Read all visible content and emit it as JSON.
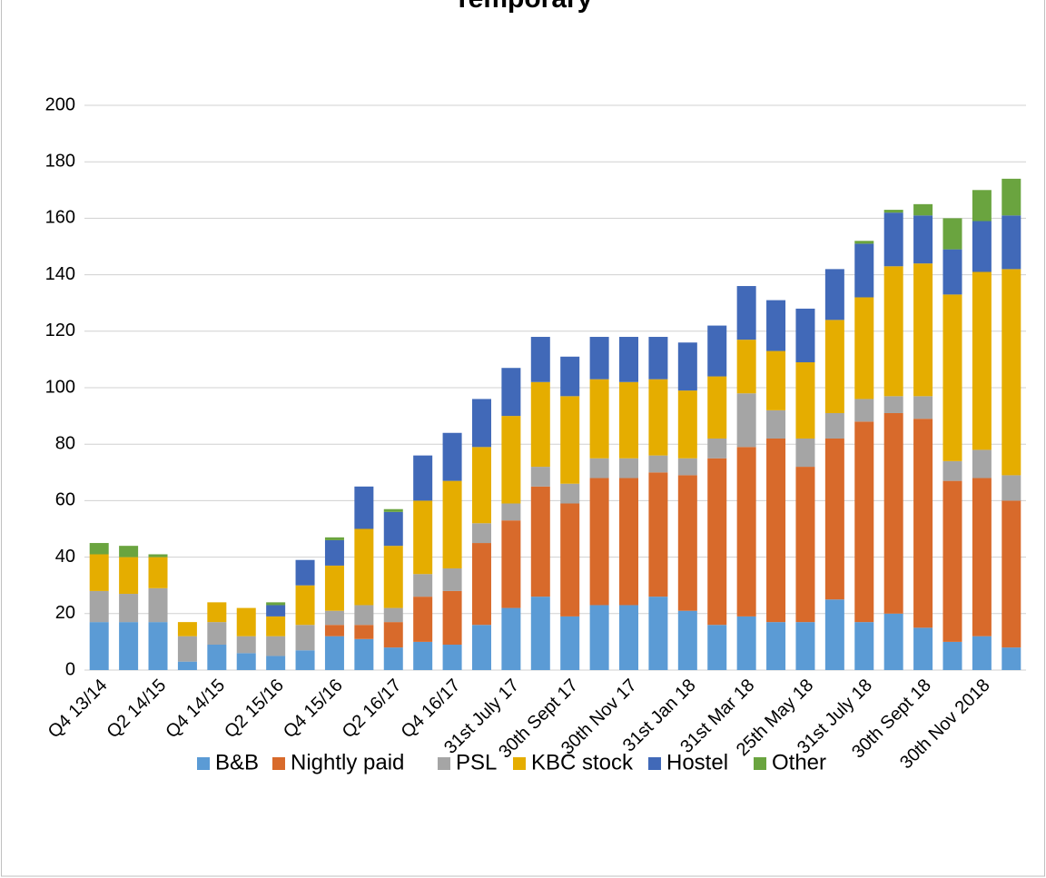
{
  "chart_data": {
    "type": "stacked_bar",
    "title": "Temporary",
    "categories": [
      "Q4 13/14",
      null,
      "Q2 14/15",
      null,
      "Q4 14/15",
      null,
      "Q2 15/16",
      null,
      "Q4 15/16",
      null,
      "Q2 16/17",
      null,
      "Q4 16/17",
      null,
      "31st July 17",
      null,
      "30th Sept 17",
      null,
      "30th Nov 17",
      null,
      "31st Jan 18",
      null,
      "31st Mar 18",
      null,
      "25th May 18",
      null,
      "31st July 18",
      null,
      "30th Sept 18",
      null,
      "30th Nov 2018",
      null
    ],
    "series": [
      {
        "name": "B&B",
        "color": "#5b9bd5",
        "values": [
          17,
          17,
          17,
          3,
          9,
          6,
          5,
          7,
          12,
          11,
          8,
          10,
          9,
          16,
          22,
          26,
          19,
          23,
          23,
          26,
          21,
          16,
          19,
          17,
          17,
          25,
          17,
          20,
          15,
          10,
          12,
          8
        ]
      },
      {
        "name": "Nightly paid",
        "color": "#d86a2b",
        "values": [
          0,
          0,
          0,
          0,
          0,
          0,
          0,
          0,
          4,
          5,
          9,
          16,
          19,
          29,
          31,
          39,
          40,
          45,
          45,
          44,
          48,
          59,
          60,
          65,
          55,
          57,
          71,
          71,
          74,
          57,
          56,
          52
        ]
      },
      {
        "name": "PSL",
        "color": "#a5a5a5",
        "values": [
          11,
          10,
          12,
          9,
          8,
          6,
          7,
          9,
          5,
          7,
          5,
          8,
          8,
          7,
          6,
          7,
          7,
          7,
          7,
          6,
          6,
          7,
          19,
          10,
          10,
          9,
          8,
          6,
          8,
          7,
          10,
          9
        ]
      },
      {
        "name": "KBC stock",
        "color": "#e5ad00",
        "values": [
          13,
          13,
          11,
          5,
          7,
          10,
          7,
          14,
          16,
          27,
          22,
          26,
          31,
          27,
          31,
          30,
          31,
          28,
          27,
          27,
          24,
          22,
          19,
          21,
          27,
          33,
          36,
          46,
          47,
          59,
          63,
          73
        ]
      },
      {
        "name": "Hostel",
        "color": "#4169b8",
        "values": [
          0,
          0,
          0,
          0,
          0,
          0,
          4,
          9,
          9,
          15,
          12,
          16,
          17,
          17,
          17,
          16,
          14,
          15,
          16,
          15,
          17,
          18,
          19,
          18,
          19,
          18,
          19,
          19,
          17,
          16,
          18,
          19
        ]
      },
      {
        "name": "Other",
        "color": "#6aa43f",
        "values": [
          4,
          4,
          1,
          0,
          0,
          0,
          1,
          0,
          1,
          0,
          1,
          0,
          0,
          0,
          0,
          0,
          0,
          0,
          0,
          0,
          0,
          0,
          0,
          0,
          0,
          0,
          1,
          1,
          4,
          11,
          11,
          13
        ]
      }
    ],
    "ylim": [
      0,
      200
    ],
    "yticks": [
      0,
      20,
      40,
      60,
      80,
      100,
      120,
      140,
      160,
      180,
      200
    ],
    "grid": true,
    "legend": "bottom"
  }
}
